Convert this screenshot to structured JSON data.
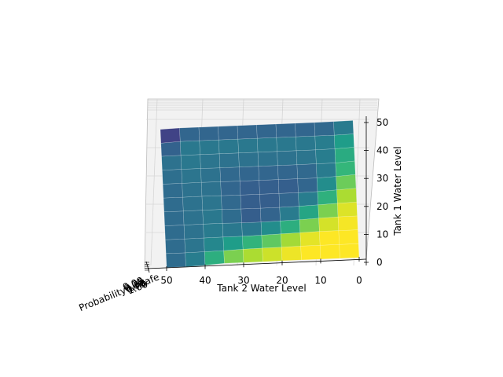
{
  "chart_data": {
    "type": "surface",
    "xlabel": "Tank 2 Water Level",
    "ylabel": "Tank 1 Water Level",
    "zlabel": "Probability Unsafe",
    "x_ticks": [
      "50",
      "40",
      "30",
      "20",
      "10",
      "0"
    ],
    "y_ticks": [
      "0",
      "10",
      "20",
      "30",
      "40",
      "50"
    ],
    "z_ticks_overlapping": [
      "0.00",
      "0.25",
      "0.50",
      "0.75",
      "1.00"
    ],
    "x_range": [
      0,
      50
    ],
    "y_range": [
      0,
      50
    ],
    "z_range": [
      0,
      1
    ],
    "colormap": "viridis",
    "grid": true,
    "view": "top-down",
    "x_levels": [
      50,
      45,
      40,
      35,
      30,
      25,
      20,
      15,
      10,
      5,
      0
    ],
    "y_levels": [
      0,
      5,
      10,
      15,
      20,
      25,
      30,
      35,
      40,
      45,
      50
    ],
    "z_grid": [
      [
        0.35,
        0.35,
        0.55,
        0.95,
        0.95,
        0.95,
        1.0,
        1.0,
        1.0,
        1.0,
        1.0
      ],
      [
        0.35,
        0.35,
        0.45,
        0.55,
        0.75,
        0.85,
        0.9,
        1.0,
        1.0,
        1.0,
        1.0
      ],
      [
        0.35,
        0.35,
        0.4,
        0.45,
        0.45,
        0.55,
        0.7,
        0.85,
        1.0,
        1.0,
        1.0
      ],
      [
        0.35,
        0.35,
        0.4,
        0.4,
        0.3,
        0.3,
        0.4,
        0.55,
        0.8,
        0.95,
        1.0
      ],
      [
        0.35,
        0.35,
        0.4,
        0.4,
        0.3,
        0.28,
        0.3,
        0.4,
        0.6,
        0.85,
        1.0
      ],
      [
        0.35,
        0.35,
        0.4,
        0.35,
        0.3,
        0.3,
        0.3,
        0.3,
        0.4,
        0.7,
        0.95
      ],
      [
        0.35,
        0.35,
        0.4,
        0.35,
        0.3,
        0.3,
        0.3,
        0.3,
        0.3,
        0.55,
        0.9
      ],
      [
        0.35,
        0.4,
        0.4,
        0.35,
        0.35,
        0.35,
        0.35,
        0.35,
        0.4,
        0.4,
        0.8
      ],
      [
        0.35,
        0.4,
        0.4,
        0.4,
        0.4,
        0.4,
        0.4,
        0.4,
        0.4,
        0.5,
        0.75
      ],
      [
        0.1,
        0.4,
        0.4,
        0.4,
        0.4,
        0.4,
        0.4,
        0.4,
        0.4,
        0.4,
        0.55
      ],
      [
        0.05,
        0.25,
        0.25,
        0.25,
        0.25,
        0.25,
        0.25,
        0.25,
        0.25,
        0.3,
        0.4
      ]
    ]
  }
}
